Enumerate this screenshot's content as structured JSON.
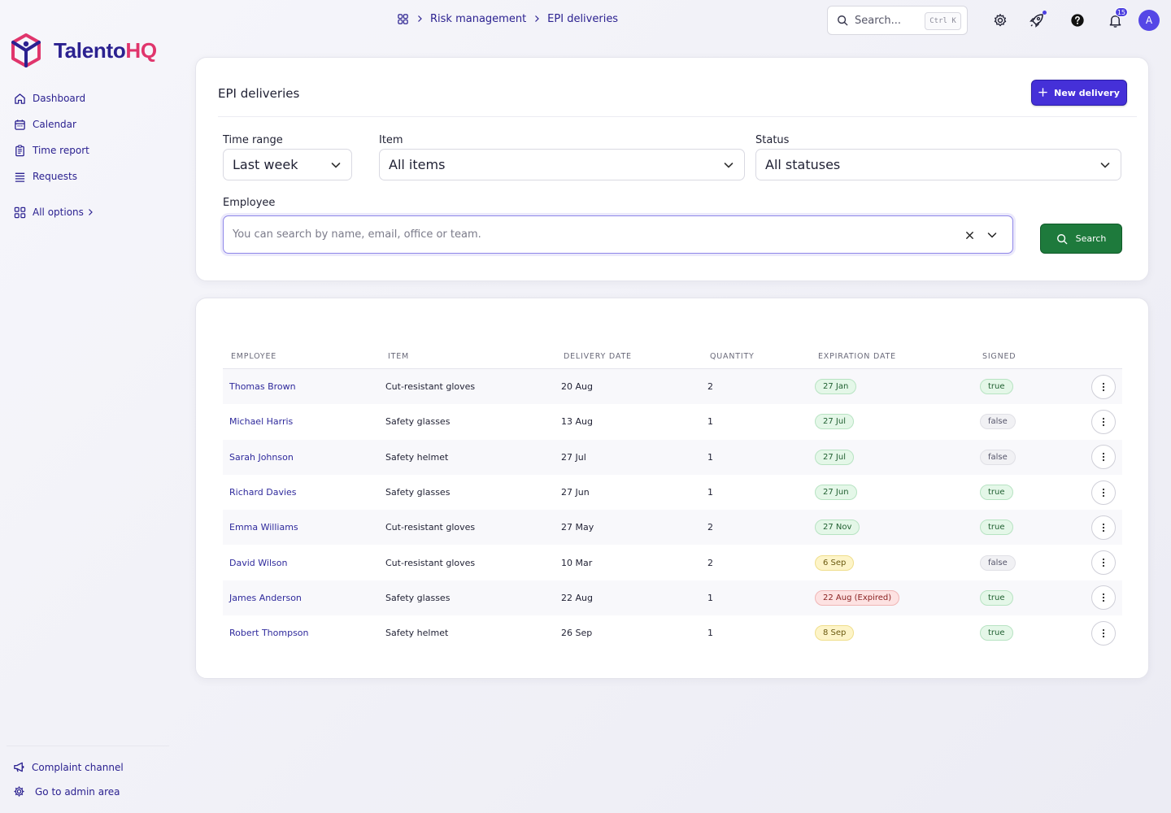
{
  "app": {
    "brand_main": "Talento",
    "brand_accent": "HQ"
  },
  "sidebar": {
    "items": [
      {
        "label": "Dashboard",
        "icon": "home-icon"
      },
      {
        "label": "Calendar",
        "icon": "calendar-icon"
      },
      {
        "label": "Time report",
        "icon": "clipboard-icon"
      },
      {
        "label": "Requests",
        "icon": "list-icon"
      }
    ],
    "all_options": "All options",
    "footer": {
      "complaint": "Complaint channel",
      "admin": "Go to admin area"
    }
  },
  "breadcrumb": {
    "section": "Risk management",
    "page": "EPI deliveries"
  },
  "topbar": {
    "search_placeholder": "Search...",
    "shortcut": "Ctrl K",
    "notifications_count": "15",
    "avatar_initial": "A"
  },
  "filters": {
    "title": "EPI deliveries",
    "new_button": "New delivery",
    "time_range": {
      "label": "Time range",
      "value": "Last week"
    },
    "item": {
      "label": "Item",
      "value": "All items"
    },
    "status": {
      "label": "Status",
      "value": "All statuses"
    },
    "employee": {
      "label": "Employee",
      "placeholder": "You can search by name, email, office or team."
    },
    "search_button": "Search"
  },
  "table": {
    "columns": [
      "Employee",
      "Item",
      "Delivery date",
      "Quantity",
      "Expiration date",
      "Signed"
    ],
    "rows": [
      {
        "employee": "Thomas Brown",
        "item": "Cut-resistant gloves",
        "delivery": "20 Aug",
        "qty": "2",
        "expiration": "27 Jan",
        "exp_status": "green",
        "signed": "true"
      },
      {
        "employee": "Michael Harris",
        "item": "Safety glasses",
        "delivery": "13 Aug",
        "qty": "1",
        "expiration": "27 Jul",
        "exp_status": "green",
        "signed": "false"
      },
      {
        "employee": "Sarah Johnson",
        "item": "Safety helmet",
        "delivery": "27 Jul",
        "qty": "1",
        "expiration": "27 Jul",
        "exp_status": "green",
        "signed": "false"
      },
      {
        "employee": "Richard Davies",
        "item": "Safety glasses",
        "delivery": "27 Jun",
        "qty": "1",
        "expiration": "27 Jun",
        "exp_status": "green",
        "signed": "true"
      },
      {
        "employee": "Emma Williams",
        "item": "Cut-resistant gloves",
        "delivery": "27 May",
        "qty": "2",
        "expiration": "27 Nov",
        "exp_status": "green",
        "signed": "true"
      },
      {
        "employee": "David Wilson",
        "item": "Cut-resistant gloves",
        "delivery": "10 Mar",
        "qty": "2",
        "expiration": "6 Sep",
        "exp_status": "yellow",
        "signed": "false"
      },
      {
        "employee": "James Anderson",
        "item": "Safety glasses",
        "delivery": "22 Aug",
        "qty": "1",
        "expiration": "22 Aug (Expired)",
        "exp_status": "red",
        "signed": "true"
      },
      {
        "employee": "Robert Thompson",
        "item": "Safety helmet",
        "delivery": "26 Sep",
        "qty": "1",
        "expiration": "8 Sep",
        "exp_status": "yellow",
        "signed": "true"
      }
    ]
  },
  "colors": {
    "brand": "#2b2190",
    "accent": "#e0356c",
    "primary_button": "#4530d8",
    "search_button": "#1e7a3c"
  }
}
